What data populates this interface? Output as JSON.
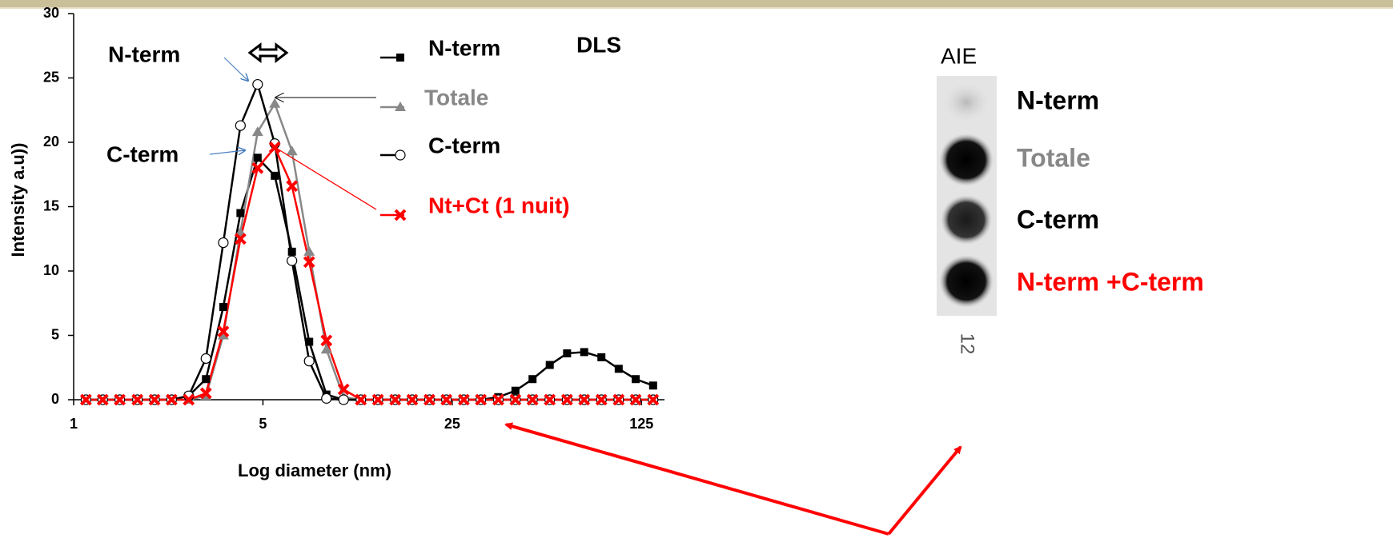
{
  "chart_data": {
    "type": "line",
    "xlabel": "Log diameter (nm)",
    "ylabel": "Intensity a.u))",
    "log_x": true,
    "xlim": [
      1,
      152
    ],
    "xticks": [
      1,
      5,
      25,
      125
    ],
    "ylim": [
      0,
      30
    ],
    "yticks": [
      0,
      5,
      10,
      15,
      20,
      25,
      30
    ],
    "x": [
      1.11,
      1.28,
      1.48,
      1.72,
      1.99,
      2.3,
      2.66,
      3.08,
      3.57,
      4.13,
      4.78,
      5.53,
      6.4,
      7.41,
      8.58,
      9.93,
      11.5,
      13.3,
      15.4,
      17.8,
      20.6,
      23.8,
      27.6,
      31.9,
      37.0,
      42.8,
      49.5,
      57.3,
      66.4,
      76.8,
      88.9,
      103,
      119,
      138
    ],
    "series": [
      {
        "name": "N-term",
        "color": "#000000",
        "marker": "square",
        "values": [
          0,
          0,
          0,
          0,
          0,
          0,
          0.3,
          1.6,
          7.2,
          14.5,
          18.8,
          17.4,
          11.5,
          4.5,
          0.4,
          0,
          0,
          0,
          0,
          0,
          0,
          0,
          0,
          0,
          0.2,
          0.7,
          1.6,
          2.7,
          3.6,
          3.7,
          3.3,
          2.4,
          1.6,
          1.1
        ]
      },
      {
        "name": "Totale",
        "color": "#888888",
        "marker": "triangle",
        "values": [
          0,
          0,
          0,
          0,
          0,
          0,
          0,
          0.3,
          5,
          13,
          20.8,
          23,
          19.3,
          11.5,
          3.9,
          0.2,
          0,
          0,
          0,
          0,
          0,
          0,
          0,
          0,
          0,
          0,
          0,
          0,
          0,
          0,
          0,
          0,
          0,
          0
        ]
      },
      {
        "name": "C-term",
        "color": "#000000",
        "marker": "circle",
        "values": [
          0,
          0,
          0,
          0,
          0,
          0,
          0.3,
          3.2,
          12.2,
          21.3,
          24.5,
          19.9,
          10.8,
          3.0,
          0.1,
          0,
          0,
          0,
          0,
          0,
          0,
          0,
          0,
          0,
          0,
          0,
          0,
          0,
          0,
          0,
          0,
          0,
          0,
          0
        ]
      },
      {
        "name": "Nt+Ct (1 nuit)",
        "color": "#ff0000",
        "marker": "x",
        "values": [
          0,
          0,
          0,
          0,
          0,
          0,
          0,
          0.5,
          5.3,
          12.5,
          18,
          19.6,
          16.6,
          10.7,
          4.6,
          0.8,
          0,
          0,
          0,
          0,
          0,
          0,
          0,
          0,
          0,
          0,
          0,
          0,
          0,
          0,
          0,
          0,
          0,
          0
        ]
      }
    ],
    "annotations": [
      "N-term",
      "C-term",
      "DLS"
    ]
  },
  "blot": {
    "title": "AIE",
    "labels": [
      "N-term",
      "Totale",
      "C-term",
      "N-term +C-term"
    ],
    "lane": "12"
  }
}
